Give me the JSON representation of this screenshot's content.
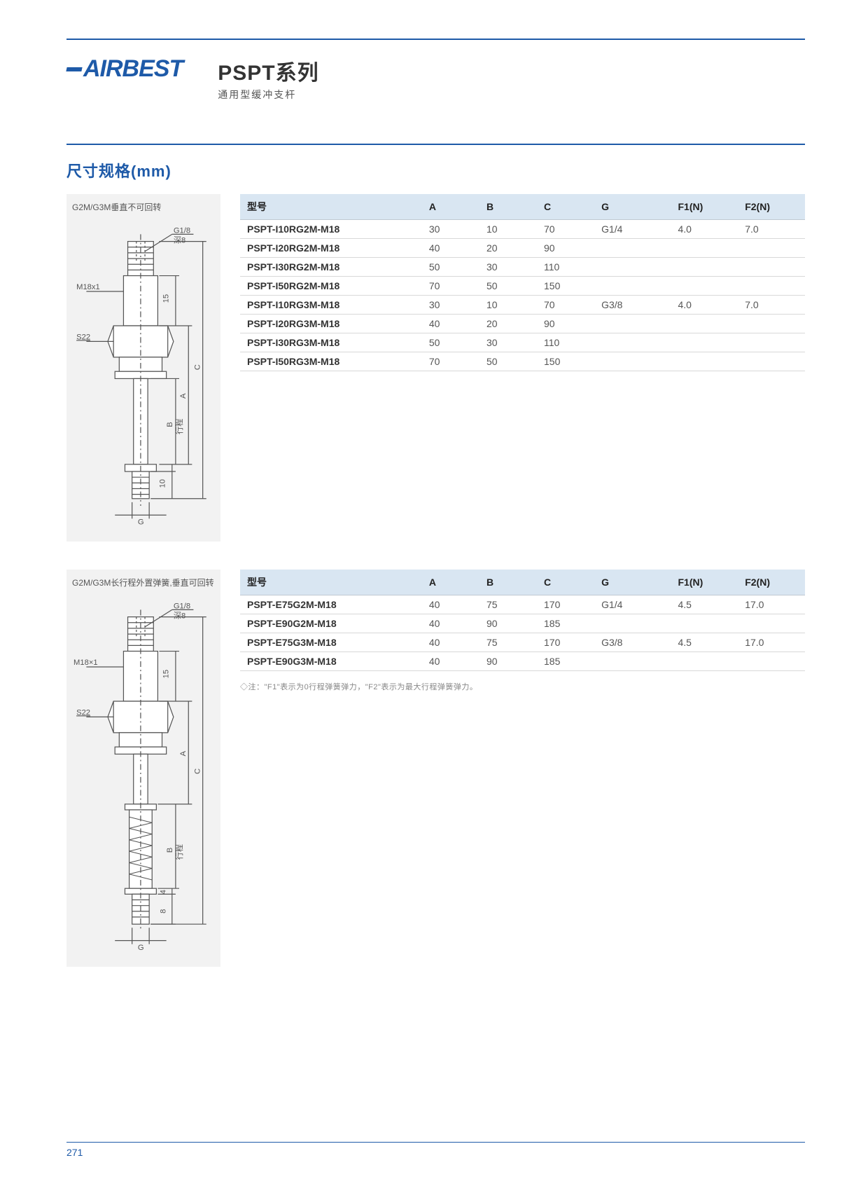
{
  "brand": "AIRBEST",
  "series_title": "PSPT系列",
  "series_subtitle": "通用型缓冲支杆",
  "section_title": "尺寸规格(mm)",
  "page_number": "271",
  "colors": {
    "accent": "#1e5aa8",
    "header_bg": "#d9e6f2",
    "diagram_bg": "#f2f2f2",
    "rule": "#d8d8d8",
    "text_body": "#555555",
    "text_strong": "#333333"
  },
  "diagram1": {
    "caption": "G2M/G3M垂直不可回转",
    "labels": {
      "thread_top": "G1/8",
      "depth": "深8",
      "thread_side": "M18x1",
      "hex": "S22",
      "dim15": "15",
      "dim10": "10",
      "dimA": "A",
      "dimB": "B",
      "dimC": "C",
      "dimG": "G",
      "stroke": "行程"
    }
  },
  "diagram2": {
    "caption": "G2M/G3M长行程外置弹簧,垂直可回转",
    "labels": {
      "thread_top": "G1/8",
      "depth": "深8",
      "thread_side": "M18×1",
      "hex": "S22",
      "dim15": "15",
      "dim4": "4",
      "dim8": "8",
      "dimA": "A",
      "dimB": "B",
      "dimC": "C",
      "dimG": "G",
      "stroke": "行程"
    }
  },
  "table_headers": [
    "型号",
    "A",
    "B",
    "C",
    "G",
    "F1(N)",
    "F2(N)"
  ],
  "table1": {
    "rows": [
      {
        "model": "PSPT-I10RG2M-M18",
        "A": "30",
        "B": "10",
        "C": "70",
        "G": "G1/4",
        "F1": "4.0",
        "F2": "7.0"
      },
      {
        "model": "PSPT-I20RG2M-M18",
        "A": "40",
        "B": "20",
        "C": "90",
        "G": "",
        "F1": "",
        "F2": ""
      },
      {
        "model": "PSPT-I30RG2M-M18",
        "A": "50",
        "B": "30",
        "C": "110",
        "G": "",
        "F1": "",
        "F2": ""
      },
      {
        "model": "PSPT-I50RG2M-M18",
        "A": "70",
        "B": "50",
        "C": "150",
        "G": "",
        "F1": "",
        "F2": ""
      },
      {
        "model": "PSPT-I10RG3M-M18",
        "A": "30",
        "B": "10",
        "C": "70",
        "G": "G3/8",
        "F1": "4.0",
        "F2": "7.0"
      },
      {
        "model": "PSPT-I20RG3M-M18",
        "A": "40",
        "B": "20",
        "C": "90",
        "G": "",
        "F1": "",
        "F2": ""
      },
      {
        "model": "PSPT-I30RG3M-M18",
        "A": "50",
        "B": "30",
        "C": "110",
        "G": "",
        "F1": "",
        "F2": ""
      },
      {
        "model": "PSPT-I50RG3M-M18",
        "A": "70",
        "B": "50",
        "C": "150",
        "G": "",
        "F1": "",
        "F2": ""
      }
    ]
  },
  "table2": {
    "rows": [
      {
        "model": "PSPT-E75G2M-M18",
        "A": "40",
        "B": "75",
        "C": "170",
        "G": "G1/4",
        "F1": "4.5",
        "F2": "17.0"
      },
      {
        "model": "PSPT-E90G2M-M18",
        "A": "40",
        "B": "90",
        "C": "185",
        "G": "",
        "F1": "",
        "F2": ""
      },
      {
        "model": "PSPT-E75G3M-M18",
        "A": "40",
        "B": "75",
        "C": "170",
        "G": "G3/8",
        "F1": "4.5",
        "F2": "17.0"
      },
      {
        "model": "PSPT-E90G3M-M18",
        "A": "40",
        "B": "90",
        "C": "185",
        "G": "",
        "F1": "",
        "F2": ""
      }
    ]
  },
  "note": "◇注：\"F1\"表示为0行程弹簧弹力，\"F2\"表示为最大行程弹簧弹力。"
}
